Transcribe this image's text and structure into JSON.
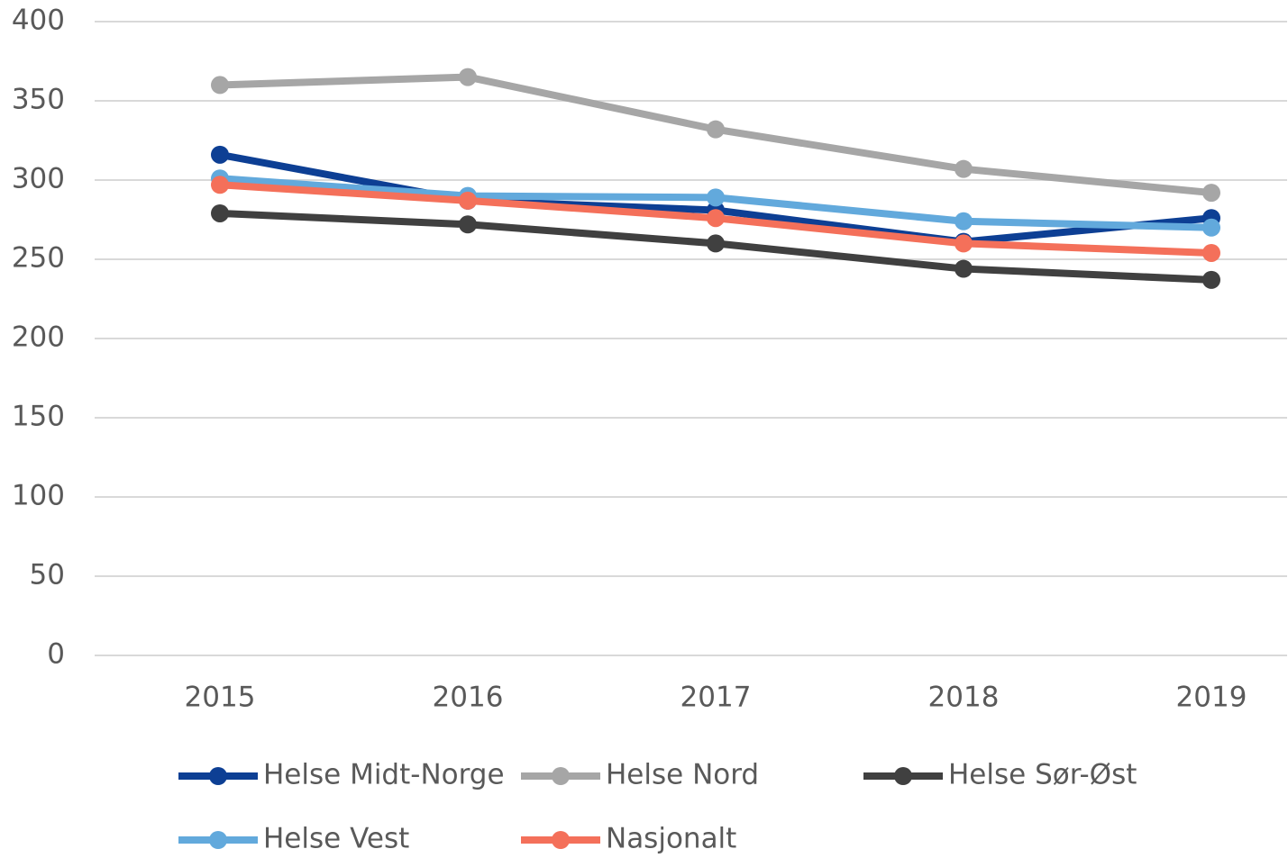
{
  "chart_data": {
    "type": "line",
    "categories": [
      "2015",
      "2016",
      "2017",
      "2018",
      "2019"
    ],
    "series": [
      {
        "name": "Helse Midt-Norge",
        "color": "#0d3f94",
        "values": [
          316,
          287,
          281,
          261,
          276
        ]
      },
      {
        "name": "Helse Nord",
        "color": "#a6a6a6",
        "values": [
          360,
          365,
          332,
          307,
          292
        ]
      },
      {
        "name": "Helse Sør-Øst",
        "color": "#404040",
        "values": [
          279,
          272,
          260,
          244,
          237
        ]
      },
      {
        "name": "Helse Vest",
        "color": "#62a9dc",
        "values": [
          301,
          290,
          289,
          274,
          270
        ]
      },
      {
        "name": "Nasjonalt",
        "color": "#f4705a",
        "values": [
          297,
          287,
          276,
          260,
          254
        ]
      }
    ],
    "ylim": [
      0,
      400
    ],
    "yticks": [
      0,
      50,
      100,
      150,
      200,
      250,
      300,
      350,
      400
    ],
    "grid": true,
    "legend": "bottom"
  }
}
